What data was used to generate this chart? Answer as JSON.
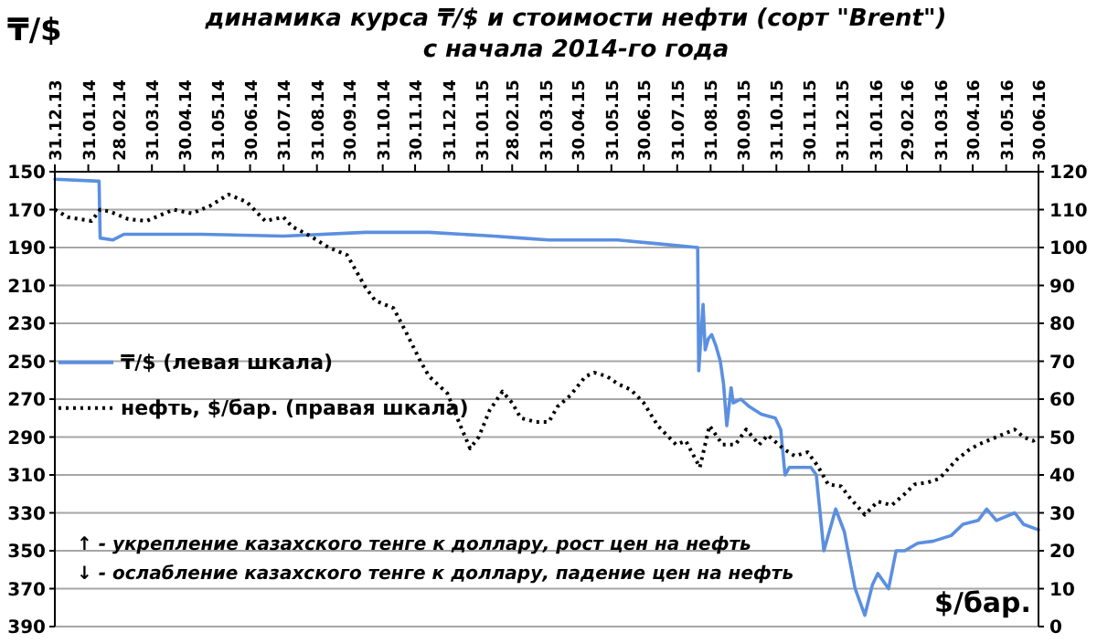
{
  "chart_data": {
    "type": "line",
    "title": "динамика  курса ₸/$ и стоимости нефти (сорт \"Brent\")",
    "subtitle": "с начала 2014-го года",
    "ylabel": "₸/$",
    "y2label": "$/бар.",
    "annotations": [
      "↑ - укрепление казахского тенге к доллару, рост цен на нефть",
      "↓ - ослабление казахского тенге к доллару, падение цен на нефть"
    ],
    "xlim": [
      "2013-12-31",
      "2016-06-30"
    ],
    "xticks": [
      {
        "value": "2013-12-31",
        "label": "31.12.13"
      },
      {
        "value": "2014-01-31",
        "label": "31.01.14"
      },
      {
        "value": "2014-02-28",
        "label": "28.02.14"
      },
      {
        "value": "2014-03-31",
        "label": "31.03.14"
      },
      {
        "value": "2014-04-30",
        "label": "30.04.14"
      },
      {
        "value": "2014-05-31",
        "label": "31.05.14"
      },
      {
        "value": "2014-06-30",
        "label": "30.06.14"
      },
      {
        "value": "2014-07-31",
        "label": "31.07.14"
      },
      {
        "value": "2014-08-31",
        "label": "31.08.14"
      },
      {
        "value": "2014-09-30",
        "label": "30.09.14"
      },
      {
        "value": "2014-10-31",
        "label": "31.10.14"
      },
      {
        "value": "2014-11-30",
        "label": "30.11.14"
      },
      {
        "value": "2014-12-31",
        "label": "31.12.14"
      },
      {
        "value": "2015-01-31",
        "label": "31.01.15"
      },
      {
        "value": "2015-02-28",
        "label": "28.02.15"
      },
      {
        "value": "2015-03-31",
        "label": "31.03.15"
      },
      {
        "value": "2015-04-30",
        "label": "30.04.15"
      },
      {
        "value": "2015-05-31",
        "label": "31.05.15"
      },
      {
        "value": "2015-06-30",
        "label": "30.06.15"
      },
      {
        "value": "2015-07-31",
        "label": "31.07.15"
      },
      {
        "value": "2015-08-31",
        "label": "31.08.15"
      },
      {
        "value": "2015-09-30",
        "label": "30.09.15"
      },
      {
        "value": "2015-10-31",
        "label": "31.10.15"
      },
      {
        "value": "2015-11-30",
        "label": "30.11.15"
      },
      {
        "value": "2015-12-31",
        "label": "31.12.15"
      },
      {
        "value": "2016-01-31",
        "label": "31.01.16"
      },
      {
        "value": "2016-02-29",
        "label": "29.02.16"
      },
      {
        "value": "2016-03-31",
        "label": "31.03.16"
      },
      {
        "value": "2016-04-30",
        "label": "30.04.16"
      },
      {
        "value": "2016-05-31",
        "label": "31.05.16"
      },
      {
        "value": "2016-06-30",
        "label": "30.06.16"
      }
    ],
    "ylim": [
      390,
      150
    ],
    "yticks": [
      150,
      170,
      190,
      210,
      230,
      250,
      270,
      290,
      310,
      330,
      350,
      370,
      390
    ],
    "y2lim": [
      0,
      120
    ],
    "y2ticks": [
      0,
      10,
      20,
      30,
      40,
      50,
      60,
      70,
      80,
      90,
      100,
      110,
      120
    ],
    "grid": "y",
    "legend": "left",
    "marker": "none",
    "series": [
      {
        "name": "₸/$ (левая шкала)",
        "color": "#5b8fe0",
        "line_style": "solid",
        "axis": "y",
        "x": [
          "2013-12-31",
          "2014-02-10",
          "2014-02-11",
          "2014-02-23",
          "2014-03-05",
          "2014-05-16",
          "2014-07-31",
          "2014-10-15",
          "2014-12-13",
          "2015-02-11",
          "2015-03-08",
          "2015-04-03",
          "2015-06-06",
          "2015-07-13",
          "2015-08-19",
          "2015-08-20",
          "2015-08-24",
          "2015-08-26",
          "2015-08-29",
          "2015-09-01",
          "2015-09-05",
          "2015-09-09",
          "2015-09-12",
          "2015-09-15",
          "2015-09-19",
          "2015-09-21",
          "2015-09-28",
          "2015-10-06",
          "2015-10-17",
          "2015-10-30",
          "2015-11-04",
          "2015-11-08",
          "2015-11-12",
          "2015-12-02",
          "2015-12-07",
          "2015-12-14",
          "2015-12-25",
          "2016-01-02",
          "2016-01-12",
          "2016-01-21",
          "2016-01-28",
          "2016-02-02",
          "2016-02-12",
          "2016-02-19",
          "2016-02-27",
          "2016-03-10",
          "2016-03-24",
          "2016-04-10",
          "2016-04-21",
          "2016-05-05",
          "2016-05-13",
          "2016-05-22",
          "2016-06-08",
          "2016-06-16",
          "2016-06-30"
        ],
        "values": [
          154,
          155,
          185,
          186,
          183,
          183,
          184,
          182,
          182,
          184,
          185,
          186,
          186,
          188,
          190,
          255,
          220,
          244,
          238,
          236,
          242,
          250,
          262,
          284,
          264,
          272,
          270,
          274,
          278,
          280,
          286,
          310,
          306,
          306,
          310,
          350,
          328,
          340,
          370,
          384,
          368,
          362,
          370,
          350,
          350,
          346,
          345,
          342,
          336,
          334,
          328,
          334,
          330,
          336,
          339
        ]
      },
      {
        "name": "нефть, $/бар. (правая шкала)",
        "color": "#000000",
        "line_style": "dotted",
        "axis": "y2",
        "x": [
          "2013-12-31",
          "2014-01-12",
          "2014-02-03",
          "2014-02-11",
          "2014-02-20",
          "2014-03-09",
          "2014-03-26",
          "2014-04-20",
          "2014-05-07",
          "2014-05-24",
          "2014-06-10",
          "2014-06-27",
          "2014-07-14",
          "2014-07-31",
          "2014-08-08",
          "2014-08-25",
          "2014-09-11",
          "2014-09-28",
          "2014-10-15",
          "2014-10-24",
          "2014-11-10",
          "2014-11-21",
          "2014-12-05",
          "2014-12-13",
          "2014-12-30",
          "2015-01-11",
          "2015-01-20",
          "2015-01-28",
          "2015-02-07",
          "2015-02-19",
          "2015-02-28",
          "2015-03-08",
          "2015-03-22",
          "2015-04-03",
          "2015-04-11",
          "2015-04-23",
          "2015-05-07",
          "2015-05-15",
          "2015-05-27",
          "2015-06-06",
          "2015-06-18",
          "2015-06-30",
          "2015-07-13",
          "2015-07-30",
          "2015-08-08",
          "2015-08-21",
          "2015-08-30",
          "2015-09-11",
          "2015-09-23",
          "2015-10-03",
          "2015-10-15",
          "2015-10-23",
          "2015-11-06",
          "2015-11-17",
          "2015-11-29",
          "2015-12-08",
          "2015-12-18",
          "2015-12-30",
          "2016-01-07",
          "2016-01-21",
          "2016-02-02",
          "2016-02-15",
          "2016-02-27",
          "2016-03-07",
          "2016-03-19",
          "2016-03-30",
          "2016-04-15",
          "2016-04-26",
          "2016-05-05",
          "2016-05-22",
          "2016-06-08",
          "2016-06-16",
          "2016-06-25",
          "2016-06-30"
        ],
        "values": [
          110,
          108,
          107,
          110,
          109.5,
          107.5,
          107,
          110,
          109,
          111,
          114,
          112,
          107,
          108,
          105.5,
          103,
          100,
          98,
          89.5,
          86,
          84,
          78,
          70,
          66,
          61.5,
          53,
          47,
          50,
          57,
          62,
          59,
          55,
          54,
          54,
          58,
          61,
          66,
          67,
          66,
          64,
          62.5,
          59,
          53,
          48,
          49,
          42,
          53,
          48,
          48,
          52,
          48,
          50.5,
          47,
          45,
          46,
          42.5,
          37.5,
          37,
          34,
          29.5,
          33,
          32,
          35,
          37.5,
          38,
          39,
          44,
          46.5,
          48,
          50,
          52,
          50,
          49,
          50
        ]
      }
    ]
  }
}
